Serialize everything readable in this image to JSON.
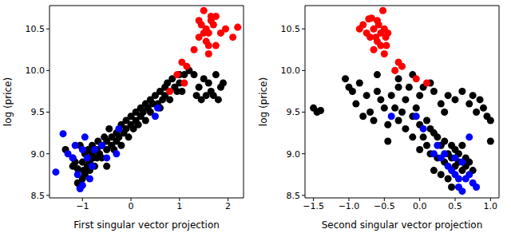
{
  "chart_data": [
    {
      "type": "scatter",
      "x_label": "First singular vector projection",
      "y_label": "log (price)",
      "xlim": [
        -1.68,
        2.32
      ],
      "ylim": [
        8.47,
        10.78
      ],
      "xticks": [
        {
          "value": -1,
          "label": "−1"
        },
        0,
        1,
        2
      ],
      "yticks": [
        8.5,
        {
          "value": 9,
          "label": "9.0"
        },
        9.5,
        {
          "value": 10,
          "label": "10.0"
        },
        10.5
      ],
      "series": [
        {
          "color": "#000000",
          "x": [
            -1.2,
            -1.15,
            -1.1,
            -1.1,
            -1.05,
            -1.0,
            -1.0,
            -0.98,
            -0.95,
            -0.95,
            -0.9,
            -0.9,
            -0.88,
            -0.85,
            -0.85,
            -0.8,
            -0.8,
            -0.78,
            -0.75,
            -0.7,
            -0.7,
            -0.68,
            -0.65,
            -0.6,
            -0.6,
            -0.55,
            -0.5,
            -0.5,
            -0.45,
            -0.4,
            -0.4,
            -0.35,
            -0.3,
            -0.3,
            -0.25,
            -0.2,
            -0.2,
            -0.15,
            -0.1,
            -0.1,
            -0.05,
            0.0,
            0.0,
            0.05,
            0.1,
            0.1,
            0.15,
            0.2,
            0.2,
            0.25,
            0.3,
            0.3,
            0.35,
            0.4,
            0.4,
            0.45,
            0.5,
            0.55,
            0.6,
            0.6,
            0.65,
            0.7,
            0.7,
            0.75,
            0.8,
            0.85,
            0.9,
            0.95,
            1.0,
            1.0,
            1.05,
            1.1,
            1.2,
            1.3,
            1.35,
            1.4,
            1.45,
            1.5,
            1.55,
            1.6,
            1.65,
            1.7,
            1.75,
            1.8,
            1.85,
            1.9,
            -1.2,
            -1.05,
            -1.35,
            -0.5
          ],
          "values": [
            8.85,
            8.9,
            8.82,
            8.65,
            8.6,
            8.7,
            8.9,
            8.8,
            9.0,
            8.75,
            8.85,
            8.95,
            9.05,
            8.8,
            8.9,
            9.0,
            9.1,
            8.95,
            8.85,
            8.95,
            9.05,
            9.15,
            9.0,
            8.95,
            9.1,
            9.2,
            9.05,
            9.15,
            9.3,
            9.1,
            9.2,
            9.05,
            9.25,
            9.15,
            9.2,
            9.35,
            9.1,
            9.25,
            9.3,
            9.4,
            9.2,
            9.35,
            9.45,
            9.3,
            9.4,
            9.5,
            9.35,
            9.55,
            9.45,
            9.5,
            9.6,
            9.4,
            9.55,
            9.65,
            9.5,
            9.6,
            9.7,
            9.6,
            9.75,
            9.55,
            9.65,
            9.8,
            9.7,
            9.85,
            9.65,
            9.9,
            9.8,
            9.75,
            9.95,
            9.85,
            9.75,
            9.95,
            10.0,
            9.95,
            9.7,
            9.8,
            9.65,
            9.9,
            9.7,
            9.85,
            9.75,
            9.7,
            9.95,
            9.65,
            9.8,
            9.85,
            8.95,
            9.1,
            9.05,
            8.85
          ]
        },
        {
          "color": "#0000ff",
          "x": [
            -1.55,
            -1.4,
            -1.3,
            -1.15,
            -1.1,
            -1.05,
            -1.0,
            -0.95,
            -0.9,
            -0.85,
            -0.75,
            -0.6,
            -0.5,
            -0.3,
            -0.25,
            0.5,
            0.55,
            -1.2,
            -1.0,
            -0.8
          ],
          "values": [
            8.78,
            9.24,
            9.0,
            9.1,
            8.75,
            8.58,
            8.62,
            9.2,
            8.95,
            8.7,
            9.05,
            9.1,
            8.95,
            9.0,
            9.3,
            9.45,
            9.55,
            8.95,
            9.05,
            8.85
          ]
        },
        {
          "color": "#ff0000",
          "x": [
            0.95,
            1.05,
            1.15,
            1.1,
            0.8,
            1.3,
            1.4,
            1.45,
            1.5,
            1.55,
            1.55,
            1.6,
            1.6,
            1.65,
            1.7,
            1.75,
            1.65,
            1.75,
            1.5,
            1.85,
            1.95,
            2.1,
            2.2,
            1.4,
            1.6
          ],
          "values": [
            9.95,
            10.1,
            10.05,
            9.85,
            9.75,
            10.25,
            10.4,
            10.55,
            10.45,
            10.5,
            10.35,
            10.45,
            10.3,
            10.6,
            10.55,
            10.3,
            10.65,
            10.65,
            10.72,
            10.45,
            10.5,
            10.4,
            10.52,
            10.6,
            10.2
          ]
        }
      ]
    },
    {
      "type": "scatter",
      "x_label": "Second singular vector projection",
      "y_label": "log (price)",
      "xlim": [
        -1.62,
        1.12
      ],
      "ylim": [
        8.47,
        10.78
      ],
      "xticks": [
        {
          "value": -1.5,
          "label": "−1.5"
        },
        {
          "value": -1,
          "label": "−1.0"
        },
        {
          "value": -0.5,
          "label": "−0.5"
        },
        {
          "value": 0,
          "label": "0.0"
        },
        0.5,
        {
          "value": 1,
          "label": "1.0"
        }
      ],
      "yticks": [
        8.5,
        {
          "value": 9,
          "label": "9.0"
        },
        9.5,
        {
          "value": 10,
          "label": "10.0"
        },
        10.5
      ],
      "series": [
        {
          "color": "#000000",
          "x": [
            -1.5,
            -1.45,
            -1.4,
            -1.05,
            -1.0,
            -0.95,
            -0.9,
            -0.85,
            -0.8,
            -0.75,
            -0.7,
            -0.65,
            -0.6,
            -0.55,
            -0.5,
            -0.45,
            -0.4,
            -0.35,
            -0.3,
            -0.3,
            -0.25,
            -0.2,
            -0.2,
            -0.15,
            -0.1,
            -0.1,
            -0.05,
            0.0,
            0.0,
            0.05,
            0.05,
            0.1,
            0.1,
            0.15,
            0.15,
            0.2,
            0.2,
            0.25,
            0.25,
            0.3,
            0.3,
            0.35,
            0.35,
            0.4,
            0.4,
            0.45,
            0.45,
            0.5,
            0.5,
            0.5,
            0.55,
            0.55,
            0.6,
            0.6,
            0.6,
            0.65,
            0.65,
            0.7,
            0.7,
            0.75,
            0.75,
            0.8,
            0.85,
            0.9,
            0.95,
            1.0,
            1.0,
            -0.3,
            -0.1,
            0.15,
            -0.6,
            0.35,
            -0.45,
            0.0,
            0.2,
            0.4,
            0.45,
            0.3
          ],
          "values": [
            9.55,
            9.5,
            9.52,
            9.9,
            9.8,
            9.75,
            9.6,
            9.85,
            9.45,
            9.7,
            9.5,
            9.4,
            9.75,
            9.65,
            9.55,
            9.35,
            9.7,
            9.55,
            9.8,
            9.4,
            9.5,
            9.3,
            9.65,
            9.8,
            9.45,
            9.2,
            9.55,
            9.35,
            9.7,
            9.2,
            9.8,
            9.1,
            9.4,
            9.3,
            9.0,
            9.25,
            9.75,
            8.95,
            9.2,
            9.1,
            9.6,
            8.9,
            9.15,
            9.0,
            9.7,
            8.95,
            9.1,
            8.85,
            9.05,
            9.65,
            8.9,
            9.0,
            8.8,
            9.1,
            9.75,
            8.85,
            8.95,
            8.9,
            9.6,
            8.8,
            9.7,
            9.5,
            9.65,
            9.55,
            9.45,
            9.15,
            9.4,
            9.9,
            9.95,
            9.85,
            9.95,
            9.5,
            9.15,
            9.05,
            8.8,
            8.7,
            8.6,
            8.75
          ]
        },
        {
          "color": "#0000ff",
          "x": [
            -0.4,
            -0.05,
            0.05,
            0.2,
            0.25,
            0.3,
            0.35,
            0.4,
            0.45,
            0.5,
            0.55,
            0.55,
            0.6,
            0.65,
            0.7,
            0.75,
            0.8,
            0.6,
            0.7,
            0.5
          ],
          "values": [
            9.45,
            9.45,
            9.3,
            9.0,
            9.1,
            8.95,
            9.0,
            8.85,
            8.8,
            8.75,
            8.7,
            8.6,
            8.55,
            8.7,
            8.75,
            8.65,
            8.6,
            8.9,
            9.2,
            8.95
          ]
        },
        {
          "color": "#ff0000",
          "x": [
            -0.85,
            -0.8,
            -0.75,
            -0.72,
            -0.68,
            -0.65,
            -0.62,
            -0.6,
            -0.58,
            -0.55,
            -0.52,
            -0.5,
            -0.48,
            -0.47,
            -0.5,
            -0.65,
            -0.55,
            -0.6,
            -0.7,
            -0.45,
            -0.3,
            -0.25,
            -0.05,
            0.1,
            -0.35
          ],
          "values": [
            10.5,
            10.55,
            10.45,
            10.62,
            10.63,
            10.5,
            10.4,
            10.35,
            10.55,
            10.45,
            10.72,
            10.5,
            10.4,
            10.3,
            10.2,
            10.25,
            10.3,
            10.6,
            10.4,
            10.45,
            10.1,
            10.05,
            9.9,
            9.85,
            10.0
          ]
        }
      ]
    }
  ]
}
